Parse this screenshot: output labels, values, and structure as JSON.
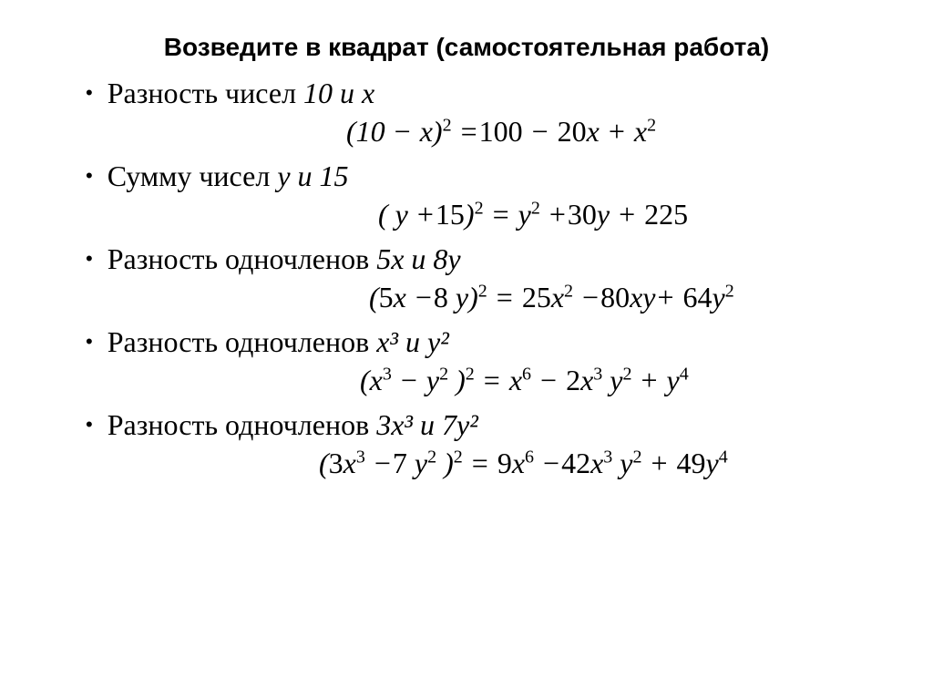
{
  "title": "Возведите в квадрат (самостоятельная работа)",
  "items": [
    {
      "prompt_prefix": "Разность чисел ",
      "prompt_italic": "10 и х",
      "formula_html": "(10 <span class='op'>−</span> <span>x</span>)<sup>2</sup> <span class='op'>=</span><span class='n'>100</span> <span class='op'>−</span> <span class='n'>20</span><span>x</span> <span class='op'>+</span> <span>x</span><sup>2</sup>",
      "formula_indent": 330
    },
    {
      "prompt_prefix": "Сумму  чисел ",
      "prompt_italic": "у и 15",
      "formula_html": "( <span>y</span> <span class='op'>+</span><span class='n'>15</span>)<sup>2</sup> <span class='op'>=</span> <span>y</span><sup>2</sup> <span class='op'>+</span><span class='n'>30</span><span>y</span> <span class='op'>+</span> <span class='n'>225</span>",
      "formula_indent": 365
    },
    {
      "prompt_prefix": "Разность одночленов ",
      "prompt_italic": "5х и 8у",
      "formula_html": "(<span class='n'>5</span><span>x</span> <span class='op'>−</span><span class='n'>8</span> <span>y</span>)<sup>2</sup> <span class='op'>=</span> <span class='n'>25</span><span>x</span><sup>2</sup> <span class='op'>−</span><span class='n'>80</span><span>xy</span><span class='op'>+</span> <span class='n'>64</span><span>y</span><sup>2</sup>",
      "formula_indent": 355
    },
    {
      "prompt_prefix": "Разность  одночленов ",
      "prompt_italic": "х³ и у²",
      "formula_html": "(<span>x</span><sup>3</sup> <span class='op'>−</span> <span>y</span><sup>2</sup> )<sup>2</sup> <span class='op'>=</span> <span>x</span><sup>6</sup> <span class='op'>−</span> <span class='n'>2</span><span>x</span><sup>3</sup> <span>y</span><sup>2</sup> <span class='op'>+</span> <span>y</span><sup>4</sup>",
      "formula_indent": 345
    },
    {
      "prompt_prefix": "Разность одночленов ",
      "prompt_italic": "3х³ и 7у²",
      "formula_html": "(<span class='n'>3</span><span>x</span><sup>3</sup> <span class='op'>−</span><span class='n'>7</span> <span>y</span><sup>2</sup> )<sup>2</sup> <span class='op'>=</span> <span class='n'>9</span><span>x</span><sup>6</sup> <span class='op'>−</span><span class='n'>42</span><span>x</span><sup>3</sup> <span>y</span><sup>2</sup> <span class='op'>+</span> <span class='n'>49</span><span>y</span><sup>4</sup>",
      "formula_indent": 300
    }
  ],
  "style": {
    "background": "#ffffff",
    "text_color": "#000000",
    "title_font": "Arial",
    "body_font": "Times New Roman",
    "title_fontsize": 28,
    "bullet_fontsize": 32,
    "formula_fontsize": 32
  }
}
